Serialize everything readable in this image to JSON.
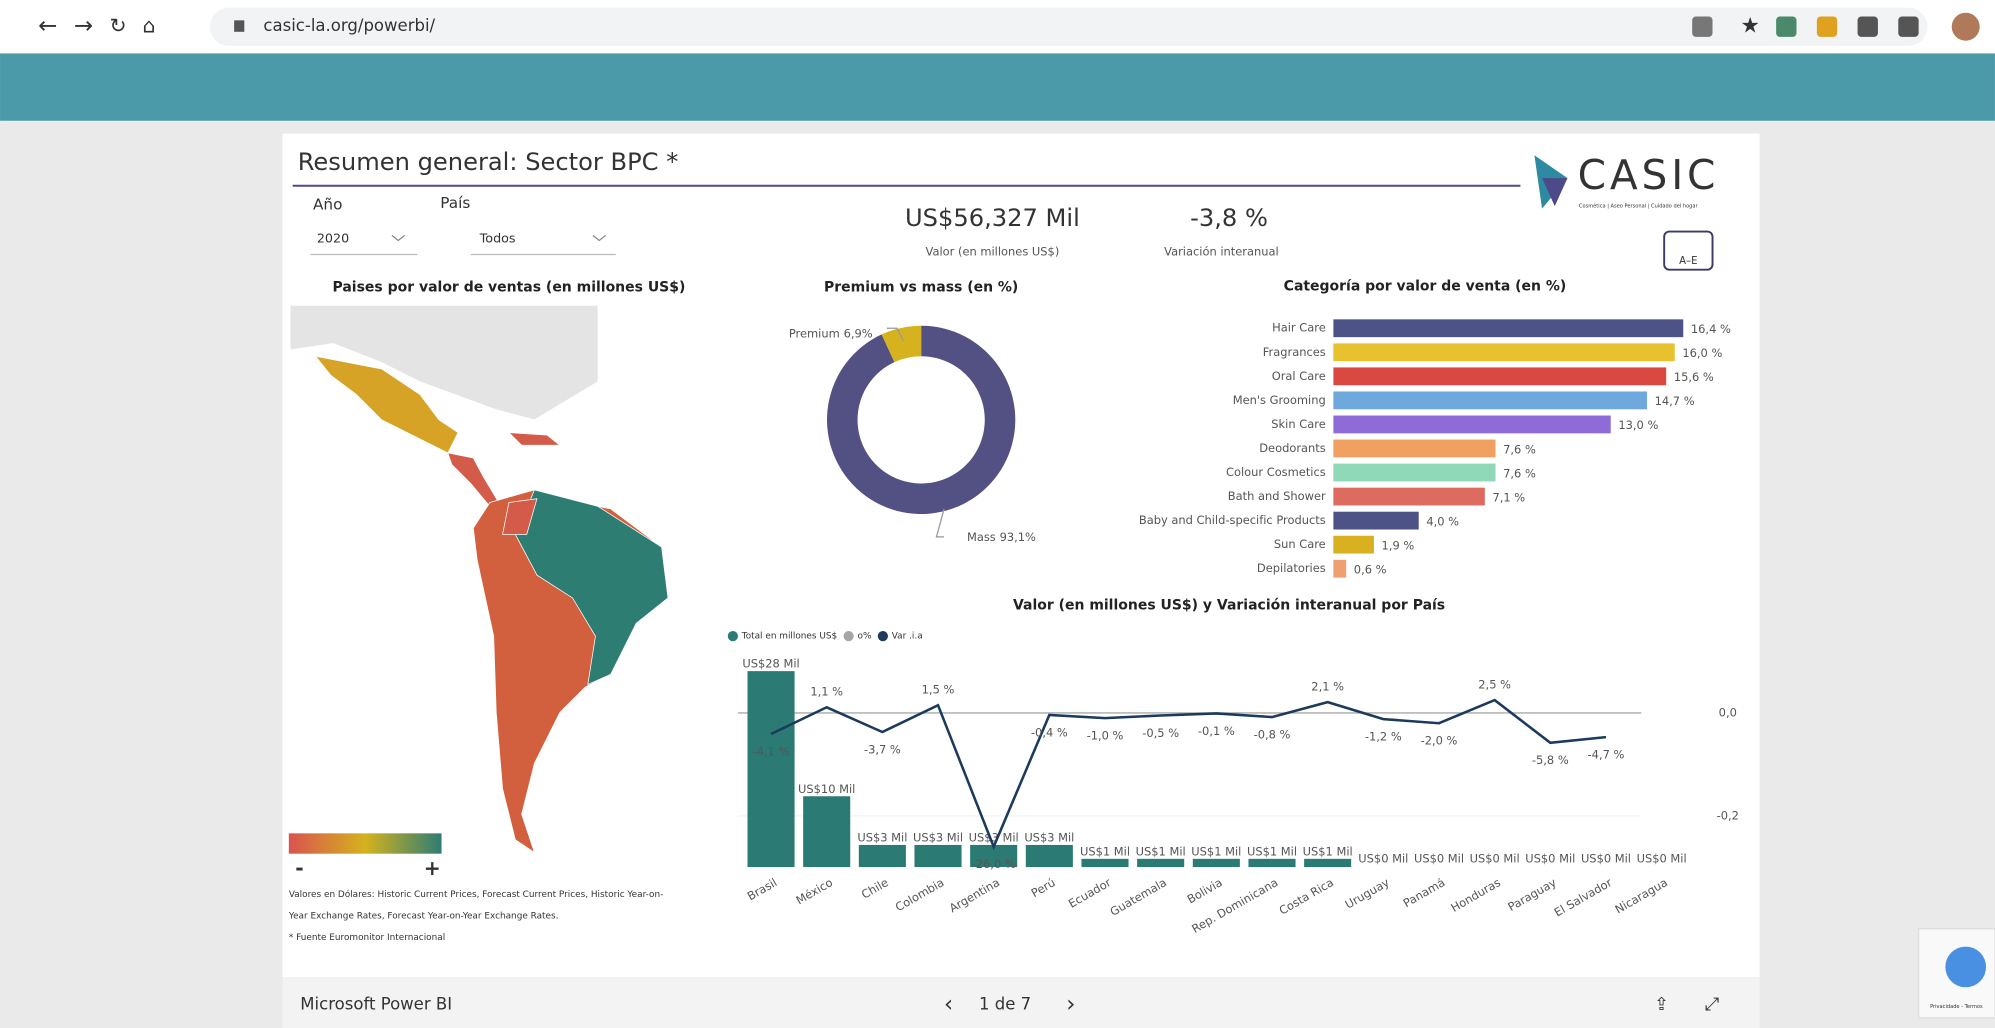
{
  "browser": {
    "url": "casic-la.org/powerbi/"
  },
  "report": {
    "title": "Resumen general: Sector BPC *",
    "logo": "CASIC",
    "logo_tagline": "Cosmética | Aseo Personal | Cuidado del hogar",
    "filters": [
      {
        "label": "Año",
        "value": "2020"
      },
      {
        "label": "País",
        "value": "Todos"
      }
    ],
    "kpis": [
      {
        "value": "US$56,327 Mil",
        "label": "Valor (en millones US$)"
      },
      {
        "value": "-3,8 %",
        "label": "Variación interanual"
      }
    ],
    "map": {
      "title": "Paises por valor de ventas (en millones US$)",
      "scale_low": "-",
      "scale_high": "+"
    },
    "notes": [
      "Valores en Dólares: Historic Current Prices, Forecast Current Prices, Historic Year-on-",
      "Year Exchange Rates, Forecast Year-on-Year Exchange Rates.",
      "* Fuente Euromonitor Internacional"
    ]
  },
  "chart_data": [
    {
      "type": "pie",
      "title": "Premium vs mass (en %)",
      "categories": [
        "Premium",
        "Mass"
      ],
      "values": [
        6.9,
        93.1
      ],
      "value_labels": [
        "6,9%",
        "93,1%"
      ],
      "colors": [
        "#d6b21f",
        "#535183"
      ]
    },
    {
      "type": "barh",
      "title": "Categoría por valor de venta (en %)",
      "categories": [
        "Hair Care",
        "Fragrances",
        "Oral Care",
        "Men's Grooming",
        "Skin Care",
        "Deodorants",
        "Colour Cosmetics",
        "Bath and Shower",
        "Baby and Child-specific Products",
        "Sun Care",
        "Depilatories"
      ],
      "values": [
        16.4,
        16.0,
        15.6,
        14.7,
        13.0,
        7.6,
        7.6,
        7.1,
        4.0,
        1.9,
        0.6
      ],
      "value_labels": [
        "16,4 %",
        "16,0 %",
        "15,6 %",
        "14,7 %",
        "13,0 %",
        "7,6 %",
        "7,6 %",
        "7,1 %",
        "4,0 %",
        "1,9 %",
        "0,6 %"
      ],
      "colors": [
        "#4e5387",
        "#e8c12e",
        "#d94841",
        "#6fa8dc",
        "#8e6bd6",
        "#f0a060",
        "#8fd8b8",
        "#dd6b5f",
        "#4e5387",
        "#d8b020",
        "#f0a070"
      ]
    },
    {
      "type": "combo",
      "title": "Valor (en millones US$) y Variación interanual por País",
      "categories": [
        "Brasil",
        "México",
        "Chile",
        "Colombia",
        "Argentina",
        "Perú",
        "Ecuador",
        "Guatemala",
        "Bolivia",
        "Rep. Dominicana",
        "Costa Rica",
        "Uruguay",
        "Panamá",
        "Honduras",
        "Paraguay",
        "El Salvador",
        "Nicaragua"
      ],
      "series": [
        {
          "name": "Total en millones US$",
          "color": "#2b7a74",
          "values": [
            28,
            10,
            3,
            3,
            3,
            3,
            1,
            1,
            1,
            1,
            1,
            0,
            0,
            0,
            0,
            0,
            0
          ],
          "value_labels": [
            "US$28 Mil",
            "US$10 Mil",
            "US$3 Mil",
            "US$3 Mil",
            "US$3 Mil",
            "US$3 Mil",
            "US$1 Mil",
            "US$1 Mil",
            "US$1 Mil",
            "US$1 Mil",
            "US$1 Mil",
            "US$0 Mil",
            "US$0 Mil",
            "US$0 Mil",
            "US$0 Mil",
            "US$0 Mil",
            "US$0 Mil"
          ]
        },
        {
          "name": "o%",
          "color": "#a6a6a6",
          "values": [
            null,
            null,
            null,
            null,
            null,
            null,
            null,
            null,
            null,
            null,
            null,
            null,
            null,
            null,
            null,
            null,
            null
          ]
        },
        {
          "name": "Var .i.a",
          "color": "#1b3a5c",
          "axis": "y2",
          "values": [
            -0.041,
            0.011,
            -0.037,
            0.015,
            -0.26,
            -0.004,
            -0.01,
            -0.005,
            -0.001,
            -0.008,
            0.021,
            -0.012,
            -0.02,
            0.025,
            -0.058,
            -0.047,
            null
          ],
          "value_labels": [
            "-4,1 %",
            "1,1 %",
            "-3,7 %",
            "1,5 %",
            "-26,0 %",
            "-0,4 %",
            "-1,0 %",
            "-0,5 %",
            "-0,1 %",
            "-0,8 %",
            "2,1 %",
            "-1,2 %",
            "-2,0 %",
            "2,5 %",
            "-5,8 %",
            "-4,7 %",
            null
          ]
        }
      ],
      "y2lim": [
        -0.36,
        0.08
      ],
      "y2ticks": [
        {
          "value": 0,
          "label": "0,0"
        },
        {
          "value": -0.2,
          "label": "-0,2"
        }
      ],
      "grid": true
    }
  ],
  "footer": {
    "brand": "Microsoft Power BI",
    "page": "1 de 7"
  },
  "recaptcha": "Privacidade - Termos"
}
